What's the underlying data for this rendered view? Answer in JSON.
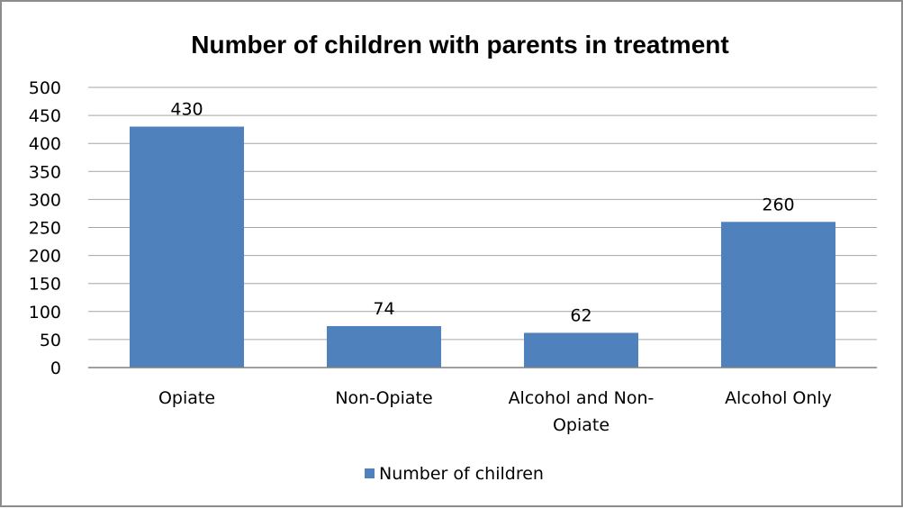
{
  "colors": {
    "bar": "#4f81bd",
    "gridline": "#a6a6a6",
    "axis": "#808080",
    "frame": "#8c8c8c"
  },
  "chart_data": {
    "type": "bar",
    "title": "Number of children with parents in treatment",
    "xlabel": "",
    "ylabel": "",
    "categories": [
      [
        "Opiate"
      ],
      [
        "Non-Opiate"
      ],
      [
        "Alcohol and Non-",
        "Opiate"
      ],
      [
        "Alcohol Only"
      ]
    ],
    "series": [
      {
        "name": "Number of children",
        "values": [
          430,
          74,
          62,
          260
        ]
      }
    ],
    "ylim": [
      0,
      500
    ],
    "yticks": [
      "0",
      "50",
      "100",
      "150",
      "200",
      "250",
      "300",
      "350",
      "400",
      "450",
      "500"
    ],
    "data_labels": [
      "430",
      "74",
      "62",
      "260"
    ],
    "grid": true,
    "legend_position": "bottom"
  }
}
